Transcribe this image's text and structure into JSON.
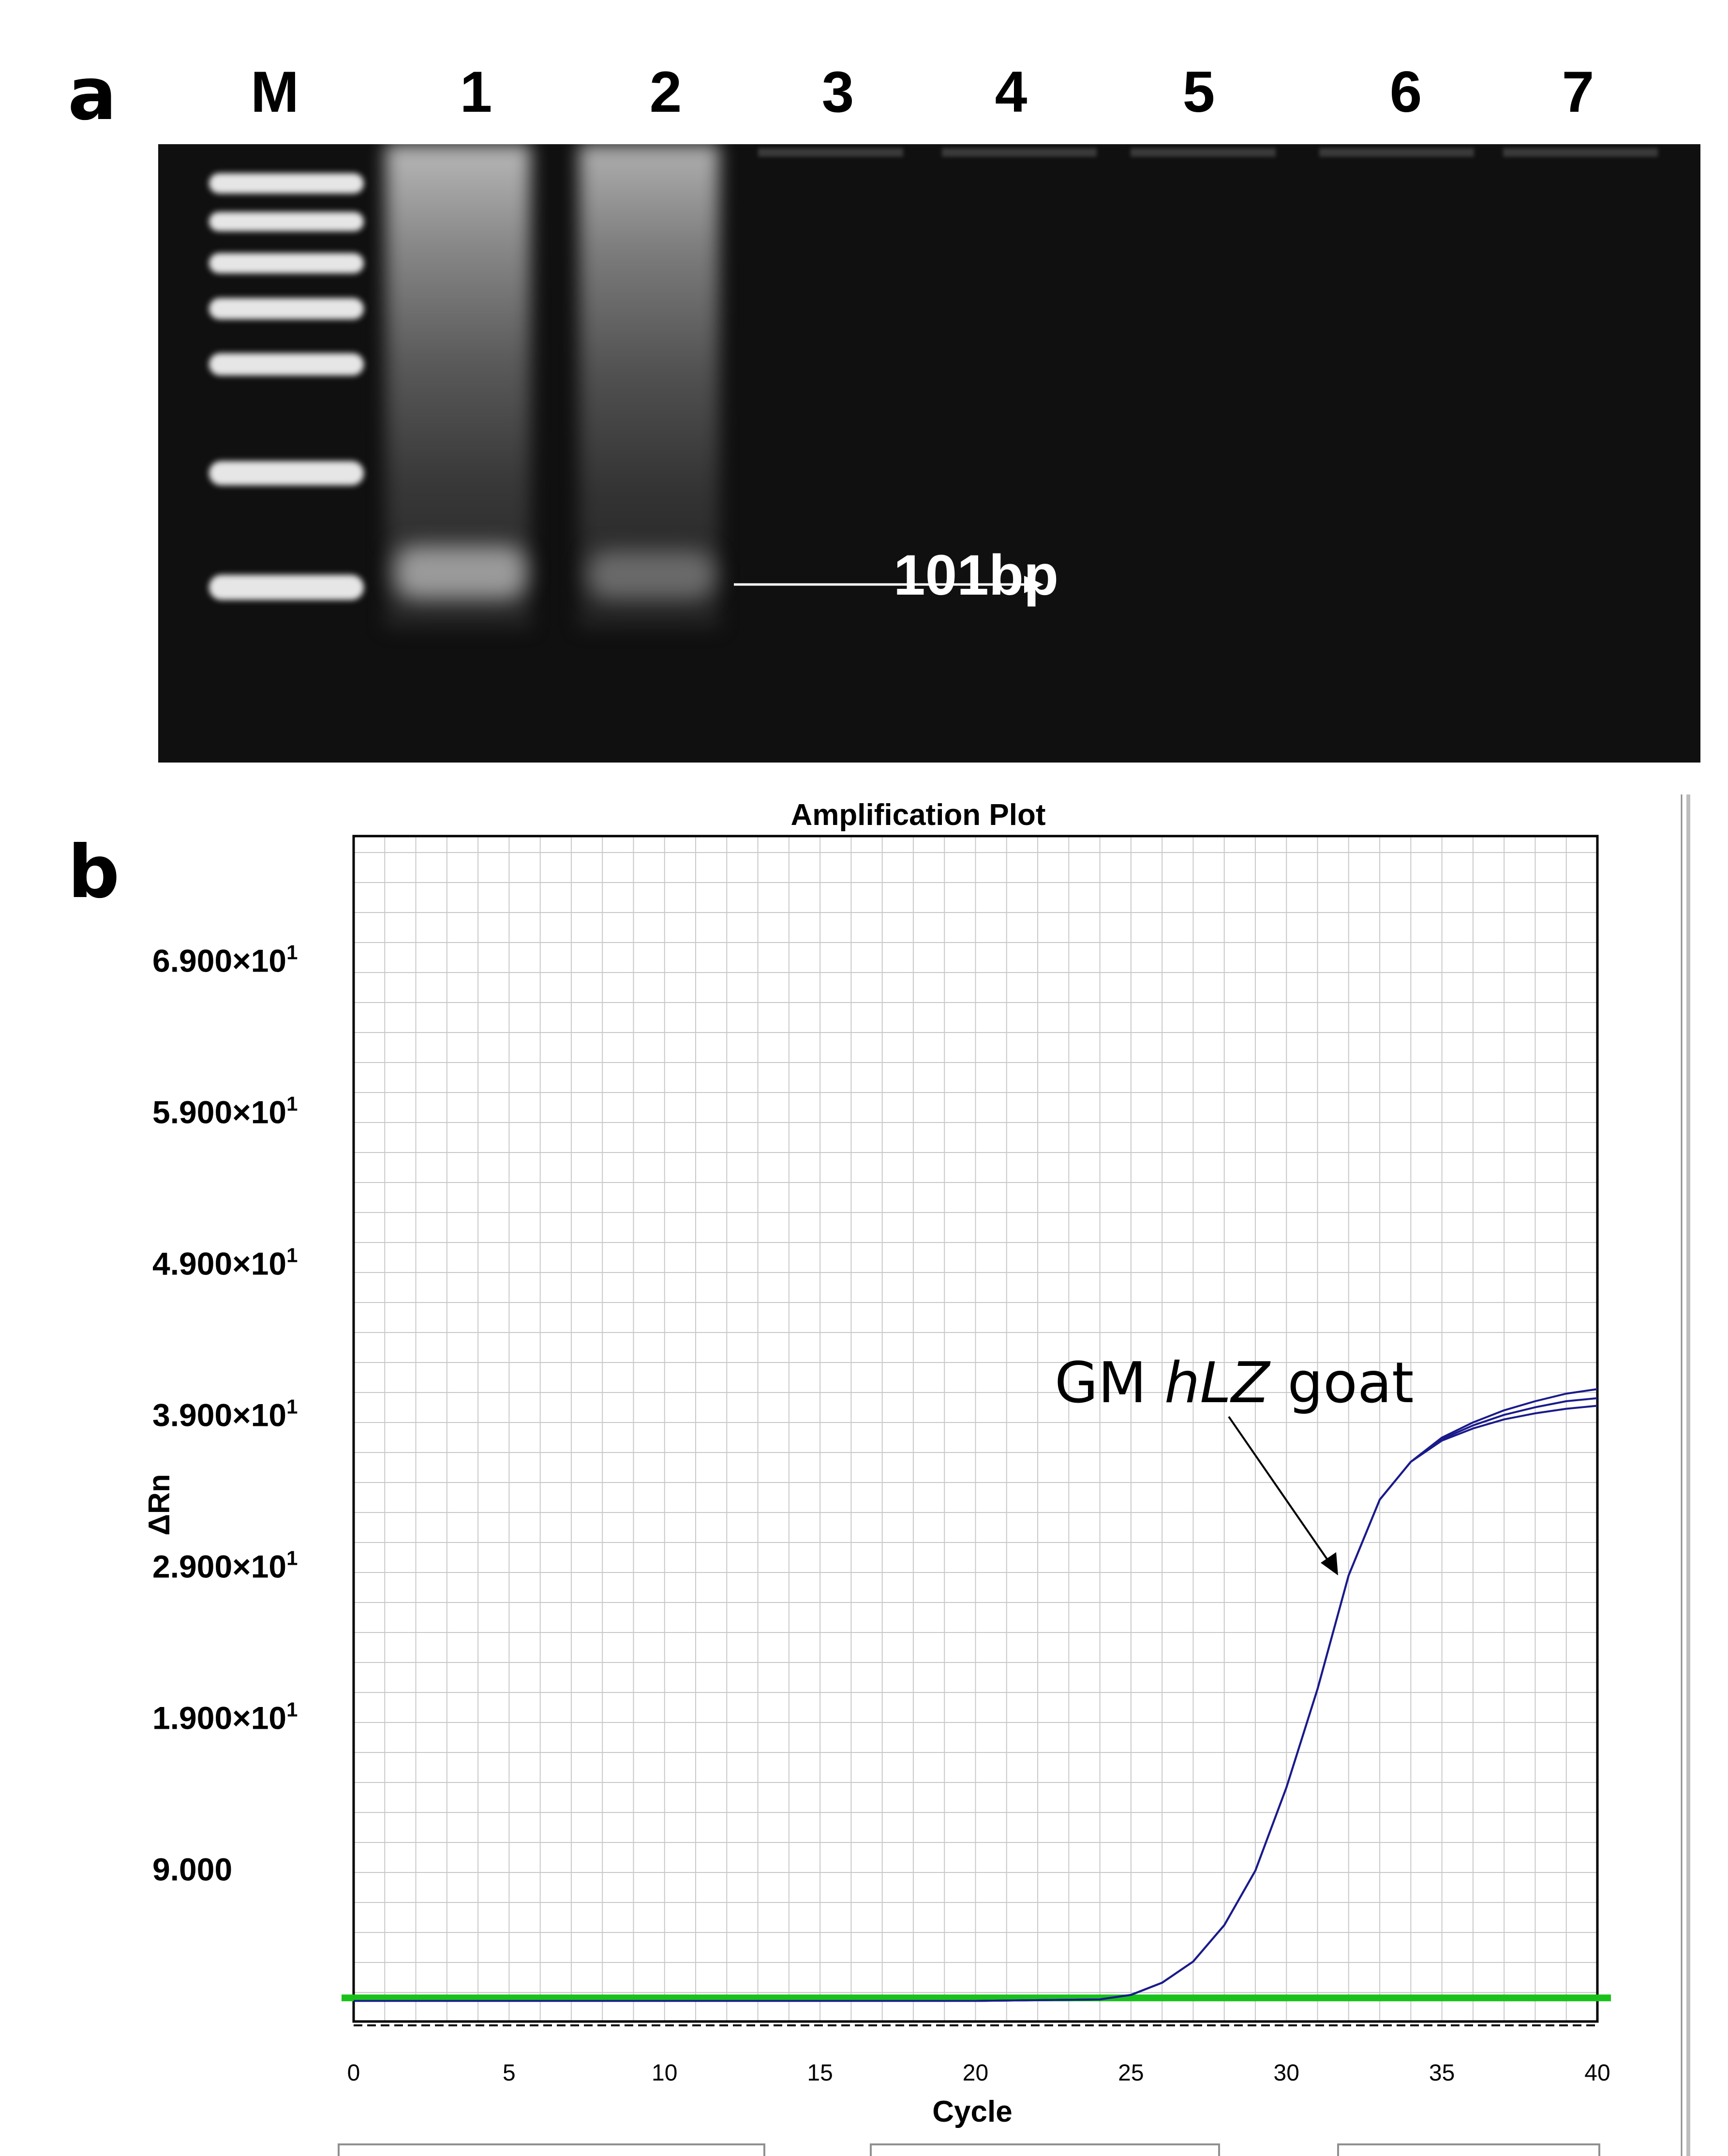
{
  "panel_a": {
    "letter": "a",
    "lanes": [
      "M",
      "1",
      "2",
      "3",
      "4",
      "5",
      "6",
      "7"
    ],
    "band_label": "101bp"
  },
  "panel_b": {
    "letter": "b"
  },
  "chart_data": {
    "type": "line",
    "title": "Amplification Plot",
    "xlabel": "Cycle",
    "ylabel": "ΔRn",
    "xlim": [
      0,
      40
    ],
    "ylim": [
      -1,
      75
    ],
    "xticks": [
      0,
      5,
      10,
      15,
      20,
      25,
      30,
      35,
      40
    ],
    "yticks": [
      {
        "value": 9,
        "label": "9.000",
        "sup": ""
      },
      {
        "value": 19,
        "label": "1.900×10",
        "sup": "1"
      },
      {
        "value": 29,
        "label": "2.900×10",
        "sup": "1"
      },
      {
        "value": 39,
        "label": "3.900×10",
        "sup": "1"
      },
      {
        "value": 49,
        "label": "4.900×10",
        "sup": "1"
      },
      {
        "value": 59,
        "label": "5.900×10",
        "sup": "1"
      },
      {
        "value": 69,
        "label": "6.900×10",
        "sup": "1"
      }
    ],
    "grid": true,
    "threshold": {
      "value": 0.6,
      "color": "#19c21a"
    },
    "series_color": "#1a1a8c",
    "series": [
      {
        "x": [
          0,
          5,
          10,
          15,
          20,
          24,
          25,
          26,
          27,
          28,
          29,
          30,
          31,
          32,
          33,
          34,
          35,
          36,
          37,
          38,
          39,
          40
        ],
        "values": [
          0.4,
          0.4,
          0.4,
          0.4,
          0.4,
          0.5,
          0.8,
          1.6,
          3.0,
          5.4,
          9.0,
          14.5,
          21.0,
          28.5,
          33.5,
          36.0,
          37.6,
          38.6,
          39.4,
          40.0,
          40.5,
          40.8
        ]
      },
      {
        "x": [
          0,
          5,
          10,
          15,
          20,
          24,
          25,
          26,
          27,
          28,
          29,
          30,
          31,
          32,
          33,
          34,
          35,
          36,
          37,
          38,
          39,
          40
        ],
        "values": [
          0.4,
          0.4,
          0.4,
          0.4,
          0.4,
          0.5,
          0.8,
          1.6,
          3.0,
          5.4,
          9.0,
          14.5,
          21.0,
          28.5,
          33.5,
          36.0,
          37.5,
          38.4,
          39.1,
          39.6,
          40.0,
          40.2
        ]
      },
      {
        "x": [
          0,
          5,
          10,
          15,
          20,
          24,
          25,
          26,
          27,
          28,
          29,
          30,
          31,
          32,
          33,
          34,
          35,
          36,
          37,
          38,
          39,
          40
        ],
        "values": [
          0.4,
          0.4,
          0.4,
          0.4,
          0.4,
          0.5,
          0.8,
          1.6,
          3.0,
          5.4,
          9.0,
          14.5,
          21.0,
          28.5,
          33.5,
          36.0,
          37.4,
          38.2,
          38.8,
          39.2,
          39.5,
          39.7
        ]
      }
    ],
    "annotation": {
      "prefix": "GM ",
      "italic": "hLZ",
      "suffix": " goat"
    }
  }
}
